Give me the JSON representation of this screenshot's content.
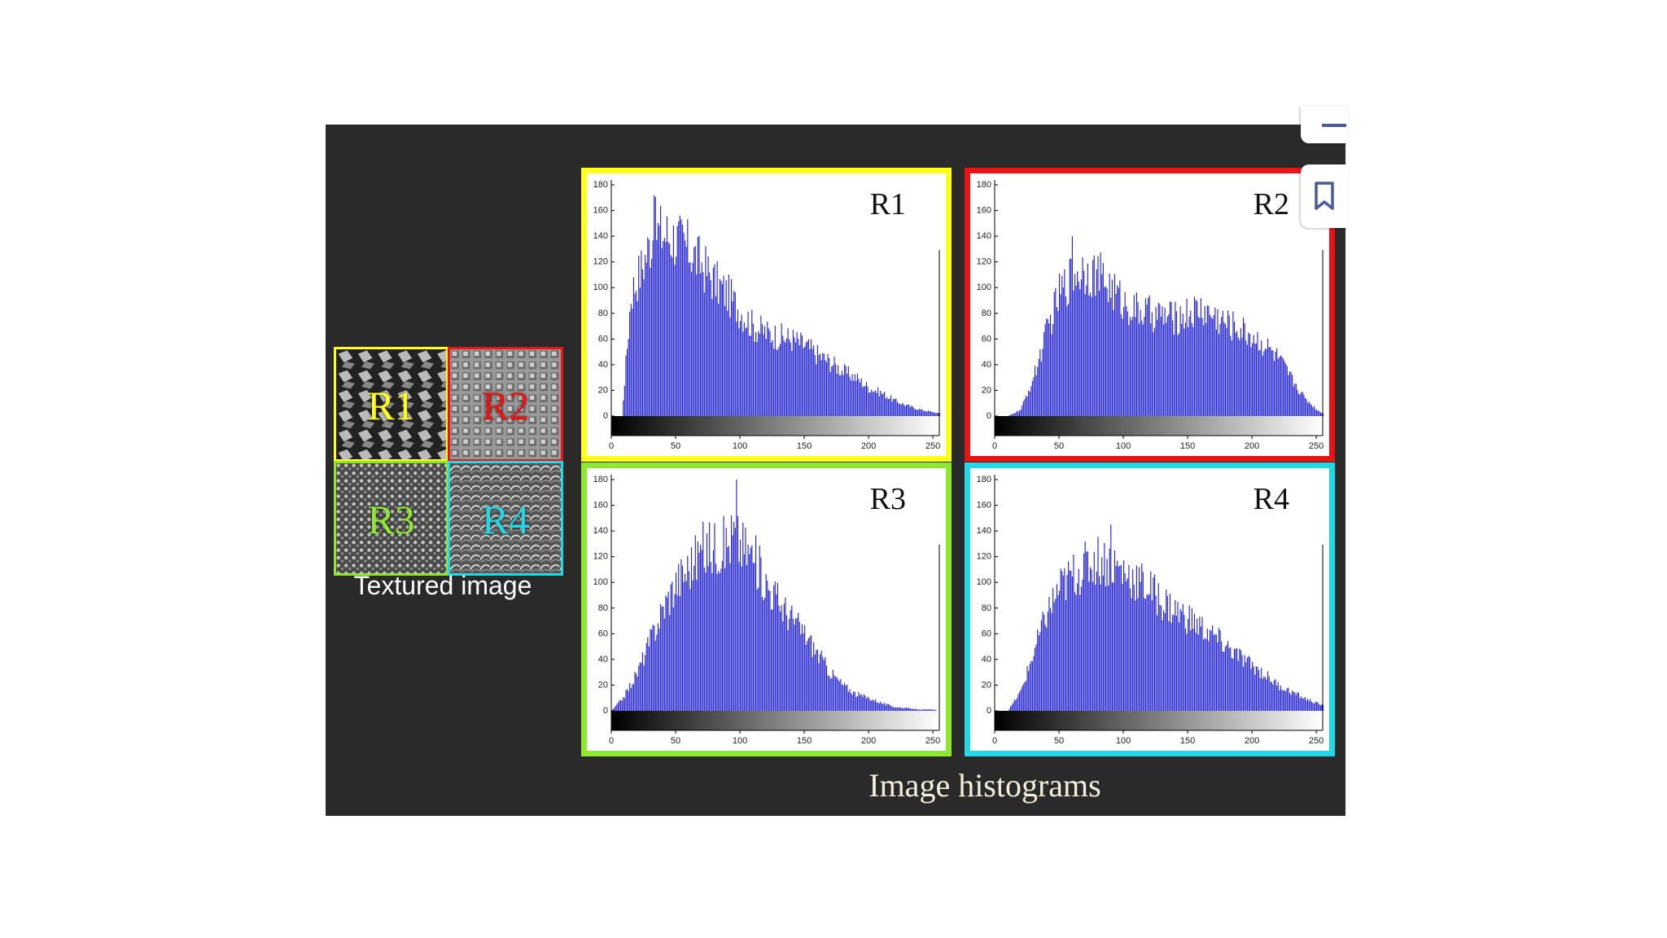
{
  "colors": {
    "figure_background": "#2a2a2a",
    "bar_fill": "#1c1cd0",
    "R1": "#ffff1a",
    "R2": "#e81414",
    "R3": "#8ee830",
    "R4": "#22d7e6",
    "caption": "#f4eedb"
  },
  "textured_image": {
    "caption": "Textured image",
    "patches": [
      {
        "label": "R1",
        "color": "#ffff1a"
      },
      {
        "label": "R2",
        "color": "#e81414"
      },
      {
        "label": "R3",
        "color": "#8ee830"
      },
      {
        "label": "R4",
        "color": "#22d7e6"
      }
    ]
  },
  "histograms_caption": "Image histograms",
  "bookmark_icon": "bookmark-icon",
  "chart_data": [
    {
      "type": "bar",
      "title": "R1",
      "border_color": "#ffff1a",
      "xlim": [
        0,
        255
      ],
      "ylim": [
        0,
        180
      ],
      "xticks": [
        "0",
        "50",
        "100",
        "150",
        "200",
        "250"
      ],
      "yticks": [
        "0",
        "20",
        "40",
        "60",
        "80",
        "100",
        "120",
        "140",
        "160",
        "180"
      ],
      "x_axis_gradient": "black-to-white",
      "envelope": {
        "x": [
          0,
          8,
          15,
          25,
          33,
          40,
          50,
          60,
          70,
          80,
          90,
          100,
          110,
          120,
          130,
          140,
          150,
          160,
          170,
          180,
          190,
          200,
          210,
          220,
          230,
          240,
          250,
          255
        ],
        "y": [
          0,
          0,
          95,
          120,
          145,
          142,
          138,
          130,
          118,
          105,
          95,
          82,
          70,
          65,
          62,
          60,
          55,
          48,
          42,
          35,
          30,
          22,
          18,
          12,
          8,
          5,
          3,
          2
        ]
      },
      "peak": {
        "x": 33,
        "y": 172
      }
    },
    {
      "type": "bar",
      "title": "R2",
      "border_color": "#e81414",
      "xlim": [
        0,
        255
      ],
      "ylim": [
        0,
        180
      ],
      "xticks": [
        "0",
        "50",
        "100",
        "150",
        "200",
        "250"
      ],
      "yticks": [
        "0",
        "20",
        "40",
        "60",
        "80",
        "100",
        "120",
        "140",
        "160",
        "180"
      ],
      "x_axis_gradient": "black-to-white",
      "envelope": {
        "x": [
          0,
          10,
          20,
          30,
          40,
          50,
          60,
          70,
          80,
          90,
          100,
          110,
          120,
          130,
          140,
          150,
          160,
          170,
          180,
          190,
          200,
          210,
          220,
          230,
          240,
          250,
          255
        ],
        "y": [
          0,
          0,
          5,
          30,
          65,
          95,
          110,
          115,
          110,
          100,
          88,
          82,
          80,
          78,
          76,
          80,
          83,
          78,
          72,
          68,
          62,
          55,
          45,
          30,
          15,
          5,
          2
        ]
      },
      "peak": {
        "x": 60,
        "y": 140
      }
    },
    {
      "type": "bar",
      "title": "R3",
      "border_color": "#8ee830",
      "xlim": [
        0,
        255
      ],
      "ylim": [
        0,
        180
      ],
      "xticks": [
        "0",
        "50",
        "100",
        "150",
        "200",
        "250"
      ],
      "yticks": [
        "0",
        "20",
        "40",
        "60",
        "80",
        "100",
        "120",
        "140",
        "160",
        "180"
      ],
      "x_axis_gradient": "black-to-white",
      "envelope": {
        "x": [
          0,
          10,
          20,
          30,
          40,
          50,
          60,
          70,
          80,
          90,
          95,
          100,
          110,
          120,
          130,
          140,
          150,
          160,
          170,
          180,
          190,
          200,
          210,
          220,
          230,
          240,
          250,
          255
        ],
        "y": [
          0,
          12,
          30,
          55,
          80,
          100,
          112,
          125,
          128,
          130,
          138,
          130,
          120,
          100,
          85,
          72,
          60,
          45,
          30,
          20,
          13,
          10,
          6,
          3,
          2,
          1,
          1,
          0
        ]
      },
      "peak": {
        "x": 97,
        "y": 182
      }
    },
    {
      "type": "bar",
      "title": "R4",
      "border_color": "#22d7e6",
      "xlim": [
        0,
        255
      ],
      "ylim": [
        0,
        180
      ],
      "xticks": [
        "0",
        "50",
        "100",
        "150",
        "200",
        "250"
      ],
      "yticks": [
        "0",
        "20",
        "40",
        "60",
        "80",
        "100",
        "120",
        "140",
        "160",
        "180"
      ],
      "x_axis_gradient": "black-to-white",
      "envelope": {
        "x": [
          0,
          10,
          20,
          30,
          40,
          50,
          60,
          70,
          80,
          90,
          100,
          110,
          120,
          130,
          140,
          150,
          160,
          170,
          180,
          190,
          200,
          210,
          220,
          230,
          240,
          250,
          255
        ],
        "y": [
          0,
          0,
          15,
          45,
          75,
          95,
          105,
          112,
          118,
          115,
          108,
          102,
          95,
          85,
          78,
          72,
          65,
          58,
          50,
          42,
          35,
          28,
          20,
          15,
          10,
          6,
          4
        ]
      },
      "peak": {
        "x": 90,
        "y": 145
      }
    }
  ]
}
